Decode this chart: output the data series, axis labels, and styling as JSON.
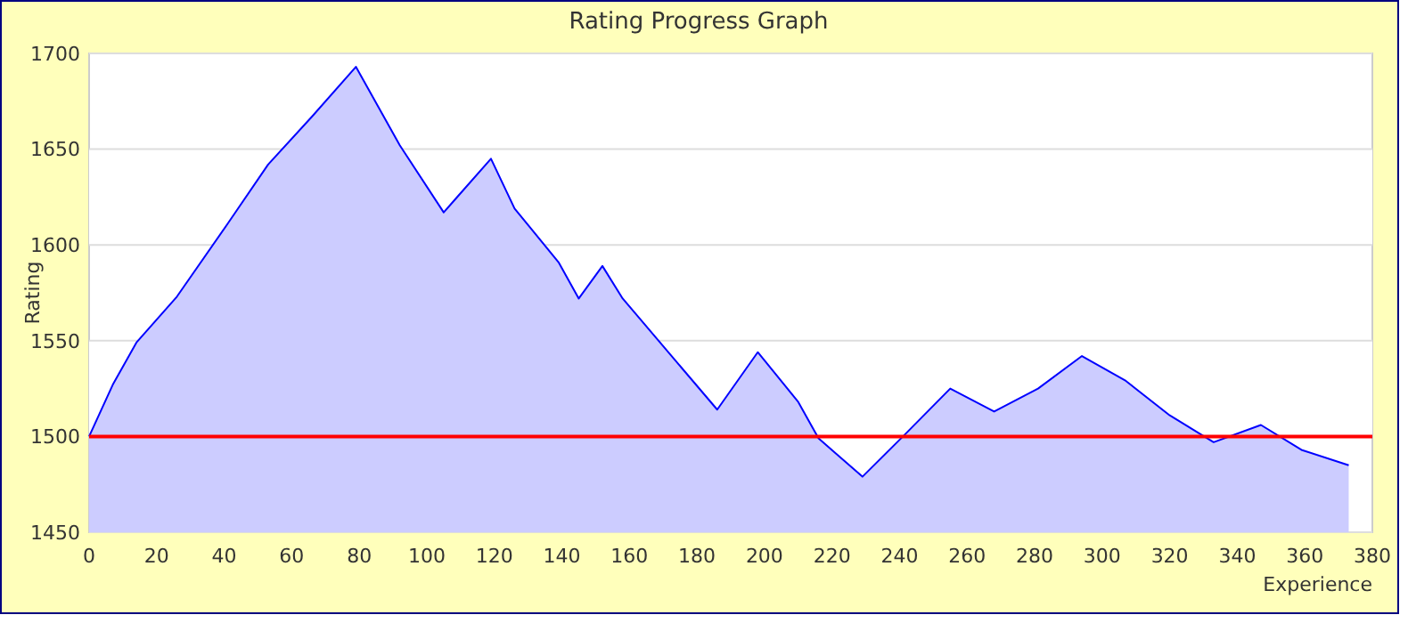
{
  "chart_data": {
    "type": "area",
    "title": "Rating Progress Graph",
    "xlabel": "Experience",
    "ylabel": "Rating",
    "x": [
      0,
      7,
      14,
      26,
      41,
      53,
      66,
      79,
      92,
      105,
      119,
      126,
      139,
      145,
      152,
      158,
      186,
      198,
      210,
      216,
      229,
      241,
      255,
      268,
      281,
      294,
      307,
      320,
      333,
      347,
      359,
      373
    ],
    "series": [
      {
        "color": "#0000ff",
        "values": [
          1500,
          1527,
          1549,
          1573,
          1611,
          1642,
          1667,
          1693,
          1652,
          1617,
          1645,
          1619,
          1591,
          1572,
          1589,
          1572,
          1514,
          1544,
          1518,
          1499,
          1479,
          1500,
          1525,
          1513,
          1525,
          1542,
          1529,
          1511,
          1497,
          1506,
          1493,
          1485
        ]
      }
    ],
    "xlim": [
      0,
      380
    ],
    "xticks": [
      0,
      20,
      40,
      60,
      80,
      100,
      120,
      140,
      160,
      180,
      200,
      220,
      240,
      260,
      280,
      300,
      320,
      340,
      360,
      380
    ],
    "ylim": [
      1450,
      1700
    ],
    "yticks": [
      1450,
      1500,
      1550,
      1600,
      1650,
      1700
    ],
    "grid": "y",
    "ref_lines": [
      {
        "axis": "y",
        "value": 1500,
        "color": "#ff0000"
      }
    ]
  }
}
